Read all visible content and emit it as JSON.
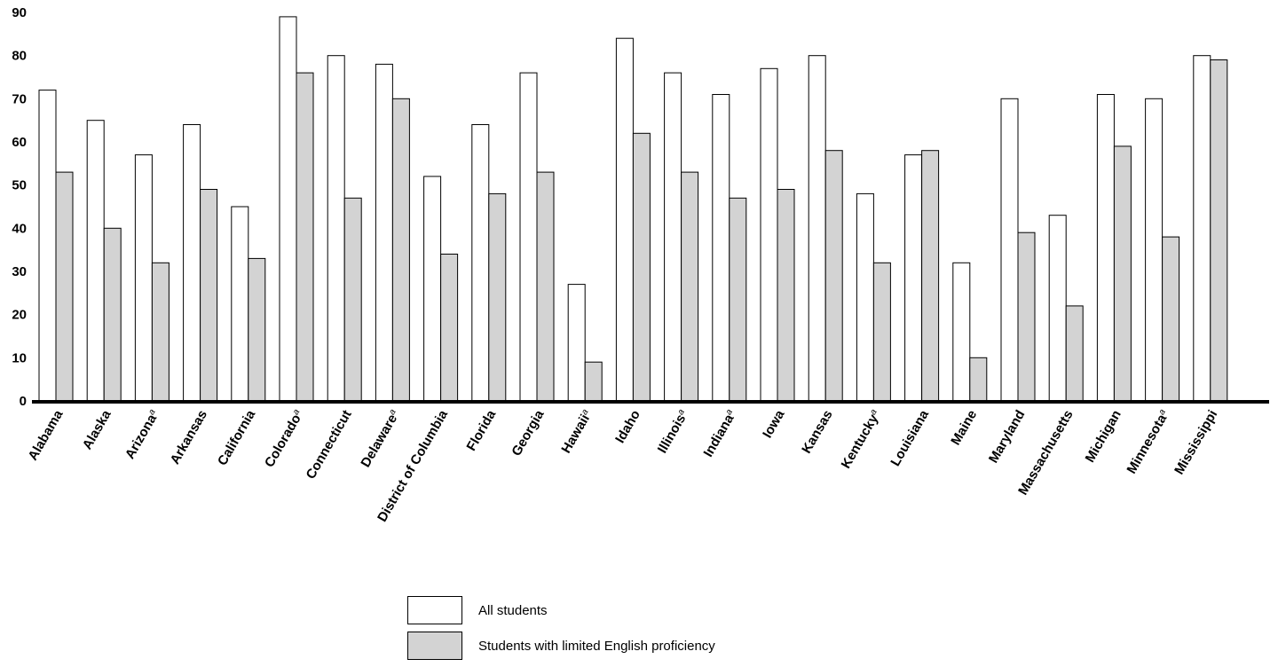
{
  "chart_data": {
    "type": "bar",
    "title": "",
    "xlabel": "",
    "ylabel": "",
    "ylim": [
      0,
      90
    ],
    "yticks": [
      "0",
      "10",
      "20",
      "30",
      "40",
      "50",
      "60",
      "70",
      "80",
      "90"
    ],
    "grid": false,
    "categories": [
      {
        "name": "Alabama",
        "sup": ""
      },
      {
        "name": "Alaska",
        "sup": ""
      },
      {
        "name": "Arizona",
        "sup": "a"
      },
      {
        "name": "Arkansas",
        "sup": ""
      },
      {
        "name": "California",
        "sup": ""
      },
      {
        "name": "Colorado",
        "sup": "a"
      },
      {
        "name": "Connecticut",
        "sup": ""
      },
      {
        "name": "Delaware",
        "sup": "a"
      },
      {
        "name": "District of Columbia",
        "sup": ""
      },
      {
        "name": "Florida",
        "sup": ""
      },
      {
        "name": "Georgia",
        "sup": ""
      },
      {
        "name": "Hawaii",
        "sup": "a"
      },
      {
        "name": "Idaho",
        "sup": ""
      },
      {
        "name": "Illinois",
        "sup": "a"
      },
      {
        "name": "Indiana",
        "sup": "a"
      },
      {
        "name": "Iowa",
        "sup": ""
      },
      {
        "name": "Kansas",
        "sup": ""
      },
      {
        "name": "Kentucky",
        "sup": "a"
      },
      {
        "name": "Louisiana",
        "sup": ""
      },
      {
        "name": "Maine",
        "sup": ""
      },
      {
        "name": "Maryland",
        "sup": ""
      },
      {
        "name": "Massachusetts",
        "sup": ""
      },
      {
        "name": "Michigan",
        "sup": ""
      },
      {
        "name": "Minnesota",
        "sup": "a"
      },
      {
        "name": "Mississippi",
        "sup": ""
      }
    ],
    "series": [
      {
        "name": "All students",
        "color": "#ffffff",
        "values": [
          72,
          65,
          57,
          64,
          45,
          89,
          80,
          78,
          52,
          64,
          76,
          27,
          84,
          76,
          71,
          77,
          80,
          48,
          57,
          32,
          70,
          43,
          71,
          70,
          80
        ]
      },
      {
        "name": "Students with limited English proficiency",
        "color": "#d3d3d3",
        "values": [
          53,
          40,
          32,
          49,
          33,
          76,
          47,
          70,
          34,
          48,
          53,
          9,
          62,
          53,
          47,
          49,
          58,
          32,
          58,
          10,
          39,
          22,
          59,
          38,
          79
        ]
      }
    ],
    "legend_position": "bottom-center"
  }
}
